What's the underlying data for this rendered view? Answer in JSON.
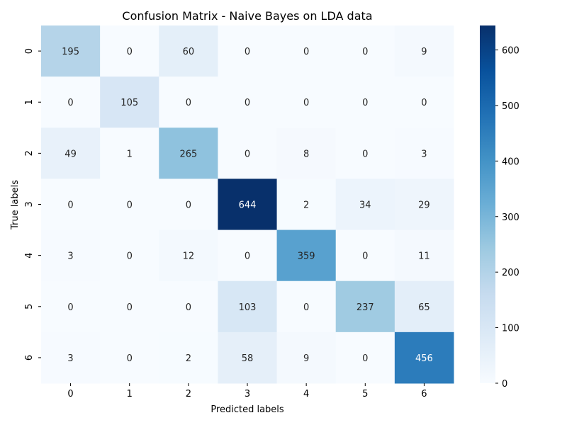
{
  "chart_data": {
    "type": "heatmap",
    "title": "Confusion Matrix - Naive Bayes on LDA data",
    "xlabel": "Predicted labels",
    "ylabel": "True labels",
    "x_categories": [
      "0",
      "1",
      "2",
      "3",
      "4",
      "5",
      "6"
    ],
    "y_categories": [
      "0",
      "1",
      "2",
      "3",
      "4",
      "5",
      "6"
    ],
    "values": [
      [
        195,
        0,
        60,
        0,
        0,
        0,
        9
      ],
      [
        0,
        105,
        0,
        0,
        0,
        0,
        0
      ],
      [
        49,
        1,
        265,
        0,
        8,
        0,
        3
      ],
      [
        0,
        0,
        0,
        644,
        2,
        34,
        29
      ],
      [
        3,
        0,
        12,
        0,
        359,
        0,
        11
      ],
      [
        0,
        0,
        0,
        103,
        0,
        237,
        65
      ],
      [
        3,
        0,
        2,
        58,
        9,
        0,
        456
      ]
    ],
    "colorbar": {
      "min": 0,
      "max": 644,
      "ticks": [
        0,
        100,
        200,
        300,
        400,
        500,
        600
      ],
      "colormap": "Blues"
    },
    "grid": false
  }
}
